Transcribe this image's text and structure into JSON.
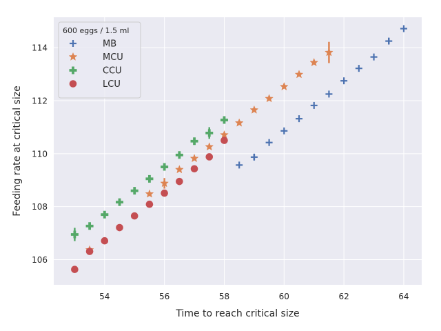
{
  "chart_data": {
    "type": "scatter",
    "xlabel": "Time to reach critical size",
    "ylabel": "Feeding rate at critical size",
    "xlim": [
      52.3,
      64.6
    ],
    "ylim": [
      105.05,
      115.15
    ],
    "xticks": [
      54,
      56,
      58,
      60,
      62,
      64
    ],
    "yticks": [
      106,
      108,
      110,
      112,
      114
    ],
    "grid": true,
    "legend": {
      "title": "600 eggs / 1.5 ml",
      "position": "top-left"
    },
    "series": [
      {
        "name": "MB",
        "marker": "plus",
        "color": "#4c72b0",
        "points": [
          [
            58.5,
            109.57
          ],
          [
            59.0,
            109.87
          ],
          [
            59.5,
            110.42
          ],
          [
            60.0,
            110.86
          ],
          [
            60.5,
            111.32
          ],
          [
            61.0,
            111.82
          ],
          [
            61.5,
            112.25
          ],
          [
            62.0,
            112.75
          ],
          [
            62.5,
            113.22
          ],
          [
            63.0,
            113.65
          ],
          [
            63.5,
            114.25
          ],
          [
            64.0,
            114.72
          ]
        ],
        "err": [
          0,
          0.12,
          0,
          0,
          0,
          0,
          0,
          0,
          0,
          0,
          0.12,
          0
        ]
      },
      {
        "name": "MCU",
        "marker": "star",
        "color": "#dd8452",
        "points": [
          [
            53.5,
            106.37
          ],
          [
            55.5,
            108.48
          ],
          [
            56.0,
            108.88
          ],
          [
            56.5,
            109.4
          ],
          [
            57.0,
            109.82
          ],
          [
            57.5,
            110.26
          ],
          [
            58.0,
            110.71
          ],
          [
            58.5,
            111.16
          ],
          [
            59.0,
            111.65
          ],
          [
            59.5,
            112.08
          ],
          [
            60.0,
            112.53
          ],
          [
            60.5,
            112.99
          ],
          [
            61.0,
            113.44
          ],
          [
            61.5,
            113.82
          ]
        ],
        "err": [
          0,
          0,
          0.2,
          0,
          0,
          0,
          0,
          0,
          0,
          0,
          0,
          0,
          0,
          0.4
        ]
      },
      {
        "name": "CCU",
        "marker": "plus-filled",
        "color": "#55a868",
        "points": [
          [
            53.0,
            106.95
          ],
          [
            53.5,
            107.27
          ],
          [
            54.0,
            107.7
          ],
          [
            54.5,
            108.17
          ],
          [
            55.0,
            108.6
          ],
          [
            55.5,
            109.05
          ],
          [
            56.0,
            109.5
          ],
          [
            56.5,
            109.95
          ],
          [
            57.0,
            110.47
          ],
          [
            57.5,
            110.78
          ],
          [
            58.0,
            111.27
          ]
        ],
        "err": [
          0.25,
          0,
          0,
          0,
          0,
          0,
          0,
          0,
          0,
          0.22,
          0
        ]
      },
      {
        "name": "LCU",
        "marker": "circle",
        "color": "#c44e52",
        "points": [
          [
            53.0,
            105.63
          ],
          [
            53.5,
            106.31
          ],
          [
            54.0,
            106.71
          ],
          [
            54.5,
            107.21
          ],
          [
            55.0,
            107.65
          ],
          [
            55.5,
            108.09
          ],
          [
            56.0,
            108.51
          ],
          [
            56.5,
            108.95
          ],
          [
            57.0,
            109.43
          ],
          [
            57.5,
            109.88
          ],
          [
            58.0,
            110.5
          ]
        ],
        "err": [
          0,
          0,
          0,
          0,
          0,
          0,
          0,
          0,
          0,
          0,
          0
        ]
      }
    ]
  }
}
